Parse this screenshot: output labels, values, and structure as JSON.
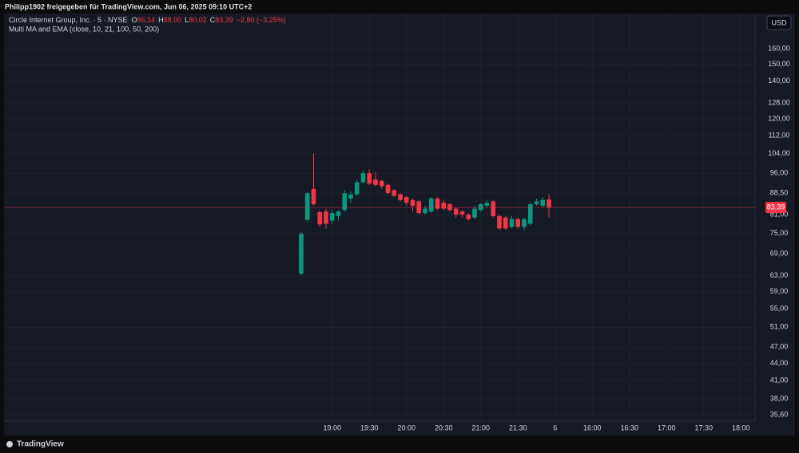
{
  "header": {
    "shared_by": "Philipp1902 freigegeben für TradingView.com, Jun 06, 2025 09:10 UTC+2",
    "symbol": "Circle Internet Group, Inc. · 5 · NYSE",
    "ohlc_legend": [
      {
        "key": "O",
        "value": "86,14"
      },
      {
        "key": "H",
        "value": "88,00"
      },
      {
        "key": "L",
        "value": "80,02"
      },
      {
        "key": "C",
        "value": "83,39"
      }
    ],
    "change": "−2,80 (−3,25%)",
    "indicator": "Multi MA and EMA (close, 10, 21, 100, 50, 200)",
    "currency": "USD",
    "brand": "TradingView"
  },
  "chart_data": {
    "type": "candlestick",
    "log_scale": true,
    "grid": true,
    "up_color": "#089981",
    "down_color": "#f23645",
    "categories": [
      null,
      null,
      null,
      null,
      null,
      "19:00",
      null,
      null,
      null,
      null,
      null,
      "19:30",
      null,
      null,
      null,
      null,
      null,
      "20:00",
      null,
      null,
      null,
      null,
      null,
      "20:30",
      null,
      null,
      null,
      null,
      null,
      "21:00",
      null,
      null,
      null,
      null,
      null,
      "21:30",
      null,
      null,
      null,
      null,
      null,
      "6",
      null,
      null,
      null,
      null,
      null,
      "16:00",
      null,
      null,
      null,
      null,
      null,
      "16:30",
      null,
      null,
      null,
      null,
      null,
      "17:00",
      null,
      null,
      null,
      null,
      null,
      "17:30",
      null,
      null,
      null,
      null,
      null,
      "18:00"
    ],
    "open": [
      63.5,
      79.3,
      90,
      81.8,
      82,
      79,
      80.5,
      82.5,
      86.5,
      88,
      92.5,
      96,
      93.5,
      93,
      91.5,
      89.5,
      88,
      87,
      86,
      85.5,
      81.5,
      82,
      86.5,
      85,
      84.5,
      83,
      82,
      81,
      80,
      82.5,
      84,
      85.5,
      80.5,
      80,
      77,
      79.5,
      77,
      78,
      84.5,
      84,
      86.14,
      null,
      null,
      null,
      null,
      null,
      null,
      null,
      null,
      null,
      null,
      null,
      null,
      null,
      null,
      null,
      null,
      null,
      null,
      null,
      null,
      null,
      null,
      null,
      null,
      null,
      null,
      null,
      null,
      null,
      null,
      null
    ],
    "high": [
      75.5,
      88.8,
      104,
      82.5,
      83,
      82.5,
      82.5,
      89.5,
      89,
      93.5,
      97,
      97.5,
      96.5,
      93.5,
      92,
      90,
      88.5,
      87.5,
      86.5,
      86,
      84,
      87,
      87,
      86,
      85,
      83.5,
      82.5,
      81.5,
      84,
      85,
      86,
      86,
      81,
      80.5,
      80.5,
      80,
      80,
      85,
      86.5,
      87,
      88,
      null,
      null,
      null,
      null,
      null,
      null,
      null,
      null,
      null,
      null,
      null,
      null,
      null,
      null,
      null,
      null,
      null,
      null,
      null,
      null,
      null,
      null,
      null,
      null,
      null,
      null,
      null,
      null,
      null,
      null,
      null
    ],
    "low": [
      63.3,
      78.5,
      84,
      77,
      76.5,
      78,
      79,
      82,
      85,
      87.5,
      92,
      91.5,
      91,
      90,
      88,
      87,
      85.5,
      84,
      82,
      81,
      81,
      81.5,
      82.5,
      82.5,
      82,
      80,
      80,
      79,
      79.5,
      82,
      83.5,
      80,
      76,
      76,
      76.5,
      76.5,
      76,
      77.5,
      84,
      83.5,
      80.02,
      null,
      null,
      null,
      null,
      null,
      null,
      null,
      null,
      null,
      null,
      null,
      null,
      null,
      null,
      null,
      null,
      null,
      null,
      null,
      null,
      null,
      null,
      null,
      null,
      null,
      null,
      null,
      null,
      null,
      null,
      null
    ],
    "close": [
      74.8,
      88.4,
      84.5,
      77.8,
      78,
      81.5,
      82,
      88.4,
      88,
      92.5,
      96,
      92,
      91.5,
      91,
      88.5,
      87.5,
      86,
      85,
      84,
      81.5,
      83,
      86.5,
      83,
      83,
      82.5,
      81,
      81,
      79.5,
      83,
      84.5,
      85,
      80.5,
      76.5,
      76.5,
      79.5,
      77,
      79.5,
      84.5,
      85.5,
      86,
      83.39,
      null,
      null,
      null,
      null,
      null,
      null,
      null,
      null,
      null,
      null,
      null,
      null,
      null,
      null,
      null,
      null,
      null,
      null,
      null,
      null,
      null,
      null,
      null,
      null,
      null,
      null,
      null,
      null,
      null,
      null,
      null
    ],
    "ylim": [
      34.7,
      183
    ],
    "yticks": [
      {
        "value": 160,
        "label": "160,00"
      },
      {
        "value": 150,
        "label": "150,00"
      },
      {
        "value": 140,
        "label": "140,00"
      },
      {
        "value": 128,
        "label": "128,00"
      },
      {
        "value": 120,
        "label": "120,00"
      },
      {
        "value": 112,
        "label": "112,00"
      },
      {
        "value": 104,
        "label": "104,00"
      },
      {
        "value": 96,
        "label": "96,00"
      },
      {
        "value": 88.5,
        "label": "88,50"
      },
      {
        "value": 81,
        "label": "81,00"
      },
      {
        "value": 75,
        "label": "75,00"
      },
      {
        "value": 69,
        "label": "69,00"
      },
      {
        "value": 63,
        "label": "63,00"
      },
      {
        "value": 59,
        "label": "59,00"
      },
      {
        "value": 55,
        "label": "55,00"
      },
      {
        "value": 51,
        "label": "51,00"
      },
      {
        "value": 47,
        "label": "47,00"
      },
      {
        "value": 44,
        "label": "44,00"
      },
      {
        "value": 41,
        "label": "41,00"
      },
      {
        "value": 38,
        "label": "38,00"
      },
      {
        "value": 35.6,
        "label": "35,60"
      }
    ],
    "last_price": {
      "value": 83.39,
      "label": "83,39"
    }
  }
}
